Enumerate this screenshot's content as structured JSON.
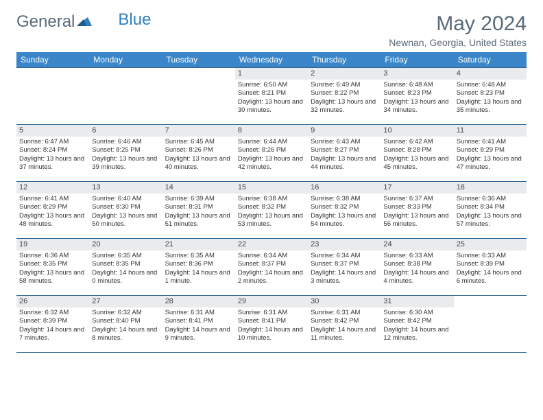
{
  "logo": {
    "general": "General",
    "blue": "Blue"
  },
  "title": "May 2024",
  "location": "Newnan, Georgia, United States",
  "colors": {
    "header_bg": "#3a86c8",
    "border": "#2f6593",
    "daynum_bg": "#e9ebed",
    "text_muted": "#5a6a78"
  },
  "dayNames": [
    "Sunday",
    "Monday",
    "Tuesday",
    "Wednesday",
    "Thursday",
    "Friday",
    "Saturday"
  ],
  "weeks": [
    [
      {
        "day": "",
        "sunrise": "",
        "sunset": "",
        "daylight": ""
      },
      {
        "day": "",
        "sunrise": "",
        "sunset": "",
        "daylight": ""
      },
      {
        "day": "",
        "sunrise": "",
        "sunset": "",
        "daylight": ""
      },
      {
        "day": "1",
        "sunrise": "Sunrise: 6:50 AM",
        "sunset": "Sunset: 8:21 PM",
        "daylight": "Daylight: 13 hours and 30 minutes."
      },
      {
        "day": "2",
        "sunrise": "Sunrise: 6:49 AM",
        "sunset": "Sunset: 8:22 PM",
        "daylight": "Daylight: 13 hours and 32 minutes."
      },
      {
        "day": "3",
        "sunrise": "Sunrise: 6:48 AM",
        "sunset": "Sunset: 8:23 PM",
        "daylight": "Daylight: 13 hours and 34 minutes."
      },
      {
        "day": "4",
        "sunrise": "Sunrise: 6:48 AM",
        "sunset": "Sunset: 8:23 PM",
        "daylight": "Daylight: 13 hours and 35 minutes."
      }
    ],
    [
      {
        "day": "5",
        "sunrise": "Sunrise: 6:47 AM",
        "sunset": "Sunset: 8:24 PM",
        "daylight": "Daylight: 13 hours and 37 minutes."
      },
      {
        "day": "6",
        "sunrise": "Sunrise: 6:46 AM",
        "sunset": "Sunset: 8:25 PM",
        "daylight": "Daylight: 13 hours and 39 minutes."
      },
      {
        "day": "7",
        "sunrise": "Sunrise: 6:45 AM",
        "sunset": "Sunset: 8:26 PM",
        "daylight": "Daylight: 13 hours and 40 minutes."
      },
      {
        "day": "8",
        "sunrise": "Sunrise: 6:44 AM",
        "sunset": "Sunset: 8:26 PM",
        "daylight": "Daylight: 13 hours and 42 minutes."
      },
      {
        "day": "9",
        "sunrise": "Sunrise: 6:43 AM",
        "sunset": "Sunset: 8:27 PM",
        "daylight": "Daylight: 13 hours and 44 minutes."
      },
      {
        "day": "10",
        "sunrise": "Sunrise: 6:42 AM",
        "sunset": "Sunset: 8:28 PM",
        "daylight": "Daylight: 13 hours and 45 minutes."
      },
      {
        "day": "11",
        "sunrise": "Sunrise: 6:41 AM",
        "sunset": "Sunset: 8:29 PM",
        "daylight": "Daylight: 13 hours and 47 minutes."
      }
    ],
    [
      {
        "day": "12",
        "sunrise": "Sunrise: 6:41 AM",
        "sunset": "Sunset: 8:29 PM",
        "daylight": "Daylight: 13 hours and 48 minutes."
      },
      {
        "day": "13",
        "sunrise": "Sunrise: 6:40 AM",
        "sunset": "Sunset: 8:30 PM",
        "daylight": "Daylight: 13 hours and 50 minutes."
      },
      {
        "day": "14",
        "sunrise": "Sunrise: 6:39 AM",
        "sunset": "Sunset: 8:31 PM",
        "daylight": "Daylight: 13 hours and 51 minutes."
      },
      {
        "day": "15",
        "sunrise": "Sunrise: 6:38 AM",
        "sunset": "Sunset: 8:32 PM",
        "daylight": "Daylight: 13 hours and 53 minutes."
      },
      {
        "day": "16",
        "sunrise": "Sunrise: 6:38 AM",
        "sunset": "Sunset: 8:32 PM",
        "daylight": "Daylight: 13 hours and 54 minutes."
      },
      {
        "day": "17",
        "sunrise": "Sunrise: 6:37 AM",
        "sunset": "Sunset: 8:33 PM",
        "daylight": "Daylight: 13 hours and 56 minutes."
      },
      {
        "day": "18",
        "sunrise": "Sunrise: 6:36 AM",
        "sunset": "Sunset: 8:34 PM",
        "daylight": "Daylight: 13 hours and 57 minutes."
      }
    ],
    [
      {
        "day": "19",
        "sunrise": "Sunrise: 6:36 AM",
        "sunset": "Sunset: 8:35 PM",
        "daylight": "Daylight: 13 hours and 58 minutes."
      },
      {
        "day": "20",
        "sunrise": "Sunrise: 6:35 AM",
        "sunset": "Sunset: 8:35 PM",
        "daylight": "Daylight: 14 hours and 0 minutes."
      },
      {
        "day": "21",
        "sunrise": "Sunrise: 6:35 AM",
        "sunset": "Sunset: 8:36 PM",
        "daylight": "Daylight: 14 hours and 1 minute."
      },
      {
        "day": "22",
        "sunrise": "Sunrise: 6:34 AM",
        "sunset": "Sunset: 8:37 PM",
        "daylight": "Daylight: 14 hours and 2 minutes."
      },
      {
        "day": "23",
        "sunrise": "Sunrise: 6:34 AM",
        "sunset": "Sunset: 8:37 PM",
        "daylight": "Daylight: 14 hours and 3 minutes."
      },
      {
        "day": "24",
        "sunrise": "Sunrise: 6:33 AM",
        "sunset": "Sunset: 8:38 PM",
        "daylight": "Daylight: 14 hours and 4 minutes."
      },
      {
        "day": "25",
        "sunrise": "Sunrise: 6:33 AM",
        "sunset": "Sunset: 8:39 PM",
        "daylight": "Daylight: 14 hours and 6 minutes."
      }
    ],
    [
      {
        "day": "26",
        "sunrise": "Sunrise: 6:32 AM",
        "sunset": "Sunset: 8:39 PM",
        "daylight": "Daylight: 14 hours and 7 minutes."
      },
      {
        "day": "27",
        "sunrise": "Sunrise: 6:32 AM",
        "sunset": "Sunset: 8:40 PM",
        "daylight": "Daylight: 14 hours and 8 minutes."
      },
      {
        "day": "28",
        "sunrise": "Sunrise: 6:31 AM",
        "sunset": "Sunset: 8:41 PM",
        "daylight": "Daylight: 14 hours and 9 minutes."
      },
      {
        "day": "29",
        "sunrise": "Sunrise: 6:31 AM",
        "sunset": "Sunset: 8:41 PM",
        "daylight": "Daylight: 14 hours and 10 minutes."
      },
      {
        "day": "30",
        "sunrise": "Sunrise: 6:31 AM",
        "sunset": "Sunset: 8:42 PM",
        "daylight": "Daylight: 14 hours and 11 minutes."
      },
      {
        "day": "31",
        "sunrise": "Sunrise: 6:30 AM",
        "sunset": "Sunset: 8:42 PM",
        "daylight": "Daylight: 14 hours and 12 minutes."
      },
      {
        "day": "",
        "sunrise": "",
        "sunset": "",
        "daylight": ""
      }
    ]
  ]
}
